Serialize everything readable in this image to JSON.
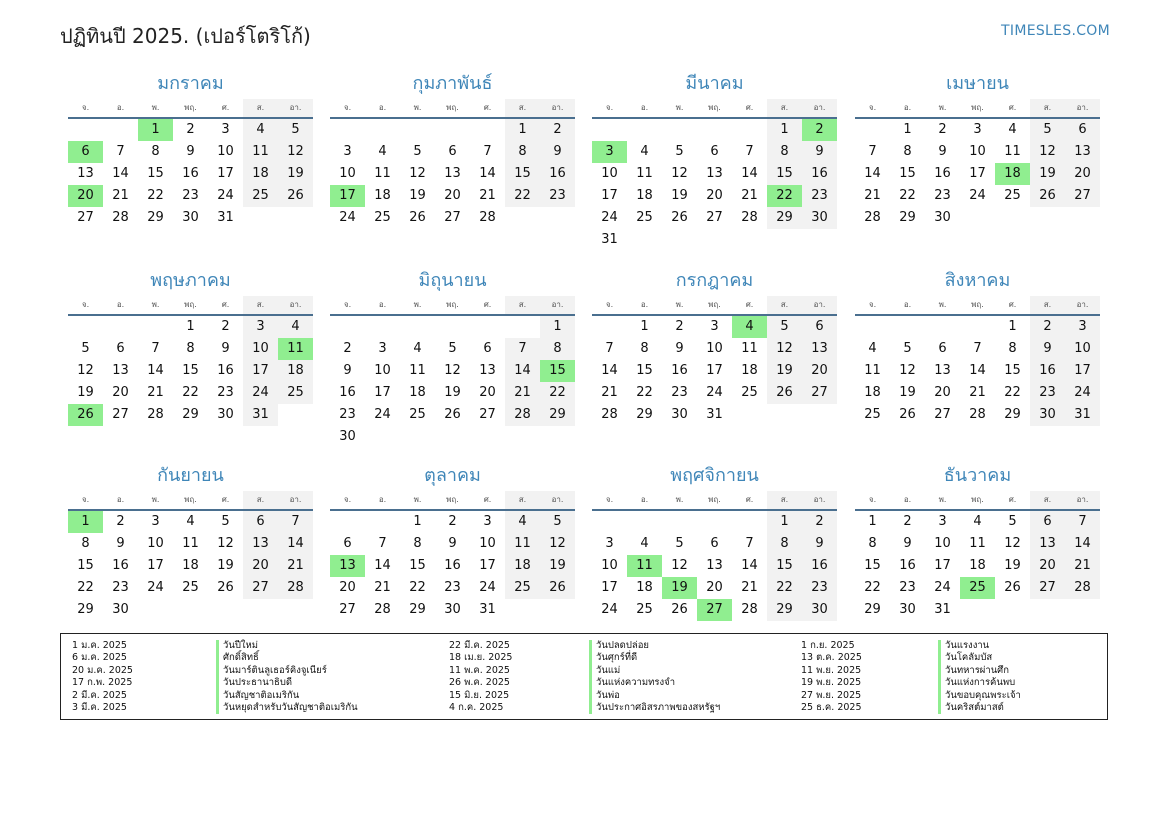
{
  "header": {
    "title": "ปฏิทินปี 2025. (เปอร์โตริโก้)",
    "brand": "TIMESLES.COM"
  },
  "weekdays": [
    "จ.",
    "อ.",
    "พ.",
    "พฤ.",
    "ศ.",
    "ส.",
    "อา."
  ],
  "colors": {
    "accent": "#3f86b8",
    "holiday": "#90ee90",
    "weekend": "#f2f2f2"
  },
  "months": [
    {
      "name": "มกราคม",
      "start": 2,
      "days": 31,
      "holidays": [
        1,
        6,
        20
      ]
    },
    {
      "name": "กุมภาพันธ์",
      "start": 5,
      "days": 28,
      "holidays": [
        17
      ]
    },
    {
      "name": "มีนาคม",
      "start": 5,
      "days": 31,
      "holidays": [
        2,
        3,
        22
      ]
    },
    {
      "name": "เมษายน",
      "start": 1,
      "days": 30,
      "holidays": [
        18
      ]
    },
    {
      "name": "พฤษภาคม",
      "start": 3,
      "days": 31,
      "holidays": [
        11,
        26
      ]
    },
    {
      "name": "มิถุนายน",
      "start": 6,
      "days": 30,
      "holidays": [
        15
      ]
    },
    {
      "name": "กรกฎาคม",
      "start": 1,
      "days": 31,
      "holidays": [
        4
      ]
    },
    {
      "name": "สิงหาคม",
      "start": 4,
      "days": 31,
      "holidays": []
    },
    {
      "name": "กันยายน",
      "start": 0,
      "days": 30,
      "holidays": [
        1
      ]
    },
    {
      "name": "ตุลาคม",
      "start": 2,
      "days": 31,
      "holidays": [
        13
      ]
    },
    {
      "name": "พฤศจิกายน",
      "start": 5,
      "days": 30,
      "holidays": [
        11,
        19,
        27
      ]
    },
    {
      "name": "ธันวาคม",
      "start": 0,
      "days": 31,
      "holidays": [
        25
      ]
    }
  ],
  "holiday_list": [
    {
      "date": "1 ม.ค. 2025",
      "name": "วันปีใหม่"
    },
    {
      "date": "6 ม.ค. 2025",
      "name": "ศักดิ์สิทธิ์"
    },
    {
      "date": "20 ม.ค. 2025",
      "name": "วันมาร์ตินลูเธอร์คิงจูเนียร์"
    },
    {
      "date": "17 ก.พ. 2025",
      "name": "วันประธานาธิบดี"
    },
    {
      "date": "2 มี.ค. 2025",
      "name": "วันสัญชาติอเมริกัน"
    },
    {
      "date": "3 มี.ค. 2025",
      "name": "วันหยุดสำหรับวันสัญชาติอเมริกัน"
    },
    {
      "date": "22 มี.ค. 2025",
      "name": "วันปลดปล่อย"
    },
    {
      "date": "18 เม.ย. 2025",
      "name": "วันศุกร์ที่ดี"
    },
    {
      "date": "11 พ.ค. 2025",
      "name": "วันแม่"
    },
    {
      "date": "26 พ.ค. 2025",
      "name": "วันแห่งความทรงจำ"
    },
    {
      "date": "15 มิ.ย. 2025",
      "name": "วันพ่อ"
    },
    {
      "date": "4 ก.ค. 2025",
      "name": "วันประกาศอิสรภาพของสหรัฐฯ"
    },
    {
      "date": "1 ก.ย. 2025",
      "name": "วันแรงงาน"
    },
    {
      "date": "13 ต.ค. 2025",
      "name": "วันโคลัมบัส"
    },
    {
      "date": "11 พ.ย. 2025",
      "name": "วันทหารผ่านศึก"
    },
    {
      "date": "19 พ.ย. 2025",
      "name": "วันแห่งการค้นพบ"
    },
    {
      "date": "27 พ.ย. 2025",
      "name": "วันขอบคุณพระเจ้า"
    },
    {
      "date": "25 ธ.ค. 2025",
      "name": "วันคริสต์มาสต์"
    }
  ]
}
